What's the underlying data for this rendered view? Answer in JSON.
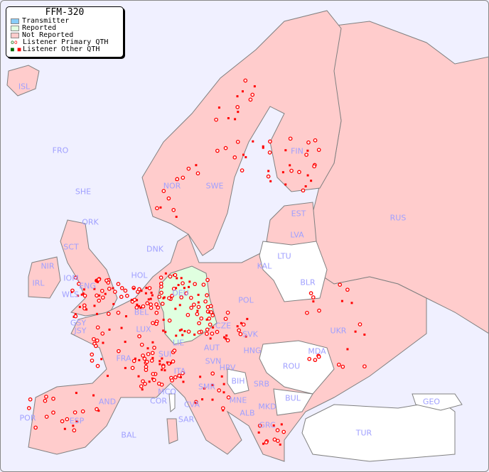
{
  "legend": {
    "title": "FFM-320",
    "items": [
      {
        "label": "Transmitter",
        "color": "#88ccf8"
      },
      {
        "label": "Reported",
        "color": "#e0ffe0"
      },
      {
        "label": "Not Reported",
        "color": "#ffcccc"
      },
      {
        "label": "Listener Primary QTH",
        "symbol": "circle",
        "color": "#ff0000"
      },
      {
        "label": "Listener Other QTH",
        "symbol": "square",
        "color": "#ff0000"
      }
    ]
  },
  "colors": {
    "sea": "#f0f0ff",
    "not_reported": "#ffcccc",
    "reported": "#e0ffe0",
    "no_data": "#ffffff",
    "label": "#a0a0ff",
    "marker": "#ff0000",
    "border": "#808080"
  },
  "countries": [
    "ISL",
    "FRO",
    "SHE",
    "ORK",
    "NOR",
    "SWE",
    "FIN",
    "EST",
    "LVA",
    "LTU",
    "KAL",
    "BLR",
    "RUS",
    "DNK",
    "SCT",
    "NIR",
    "IRL",
    "IOM",
    "WLS",
    "ENG",
    "GSY",
    "JSY",
    "HOL",
    "BEL",
    "LUX",
    "DEU",
    "POL",
    "CZE",
    "SVK",
    "HNG",
    "AUT",
    "LIE",
    "SUI",
    "FRA",
    "ITA",
    "SVN",
    "HRV",
    "BIH",
    "SRB",
    "MNE",
    "SMR",
    "CVA",
    "MCO",
    "COR",
    "SAR",
    "AND",
    "ESP",
    "POR",
    "BAL",
    "ALB",
    "MKD",
    "GRC",
    "BUL",
    "ROU",
    "MDA",
    "UKR",
    "GEO",
    "TUR"
  ],
  "reported_countries": [
    "DEU"
  ]
}
